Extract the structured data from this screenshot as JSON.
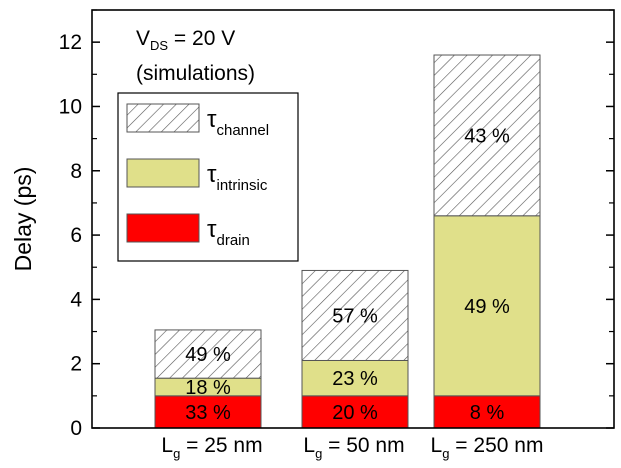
{
  "chart_data": {
    "type": "bar",
    "stacked": true,
    "ylabel": "Delay (ps)",
    "ylim": [
      0,
      13
    ],
    "y_ticks": [
      "0",
      "2",
      "4",
      "6",
      "8",
      "10",
      "12"
    ],
    "y_tick_values": [
      0,
      2,
      4,
      6,
      8,
      10,
      12
    ],
    "categories": [
      {
        "main": "L",
        "sub": "g",
        "rest": " = 25 nm"
      },
      {
        "main": "L",
        "sub": "g",
        "rest": " = 50 nm"
      },
      {
        "main": "L",
        "sub": "g",
        "rest": " = 250 nm"
      }
    ],
    "series": [
      {
        "name": "drain",
        "symbol": "τ",
        "sub": "drain",
        "color": "#ff0000",
        "pattern": "solid",
        "values": [
          1.0,
          1.0,
          1.0
        ],
        "labels": [
          "33 %",
          "20 %",
          "8 %"
        ],
        "label_color": "#ffffff"
      },
      {
        "name": "intrinsic",
        "symbol": "τ",
        "sub": "intrinsic",
        "color": "#e0e08a",
        "pattern": "solid",
        "values": [
          0.55,
          1.1,
          5.6
        ],
        "labels": [
          "18 %",
          "23 %",
          "49 %"
        ],
        "label_color": "#000000"
      },
      {
        "name": "channel",
        "symbol": "τ",
        "sub": "channel",
        "color": "#ffffff",
        "pattern": "hatch",
        "values": [
          1.5,
          2.8,
          5.0
        ],
        "labels": [
          "49 %",
          "57 %",
          "43 %"
        ],
        "label_color": "#000000"
      }
    ],
    "annotation": {
      "line1_main": "V",
      "line1_sub": "DS",
      "line1_rest": " = 20 V",
      "line2": "(simulations)"
    },
    "legend_placement": "top-left",
    "legend_order": [
      "channel",
      "intrinsic",
      "drain"
    ],
    "grid": false
  }
}
